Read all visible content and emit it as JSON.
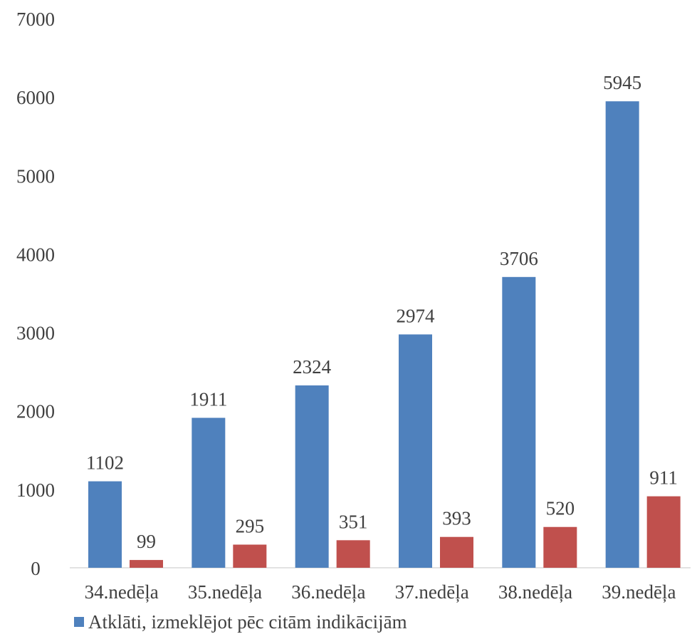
{
  "chart_data": {
    "type": "bar",
    "categories": [
      "34.nedēļa",
      "35.nedēļa",
      "36.nedēļa",
      "37.nedēļa",
      "38.nedēļa",
      "39.nedēļa"
    ],
    "series": [
      {
        "name": "Atklāti, izmeklējot pēc citām indikācijām",
        "color": "#4f81bd",
        "values": [
          1102,
          1911,
          2324,
          2974,
          3706,
          5945
        ]
      },
      {
        "color": "#c0504d",
        "values": [
          99,
          295,
          351,
          393,
          520,
          911
        ]
      }
    ],
    "ylim": [
      0,
      7000
    ],
    "yticks": [
      0,
      1000,
      2000,
      3000,
      4000,
      5000,
      6000,
      7000
    ],
    "grid": false,
    "data_labels": true,
    "legend_position": "bottom-left",
    "title": "",
    "xlabel": "",
    "ylabel": ""
  },
  "legend": {
    "items": [
      {
        "label": "Atklāti, izmeklējot pēc citām indikācijām",
        "color": "#4f81bd"
      }
    ]
  }
}
